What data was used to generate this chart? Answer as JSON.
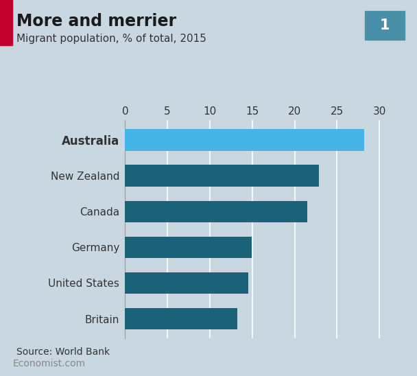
{
  "title": "More and merrier",
  "subtitle": "Migrant population, % of total, 2015",
  "source": "Source: World Bank",
  "footer": "Economist.com",
  "chart_number": "1",
  "categories": [
    "Australia",
    "New Zealand",
    "Canada",
    "Germany",
    "United States",
    "Britain"
  ],
  "values": [
    28.2,
    22.9,
    21.5,
    14.9,
    14.5,
    13.2
  ],
  "bar_colors": [
    "#45B5E8",
    "#1A6278",
    "#1A6278",
    "#1A6278",
    "#1A6278",
    "#1A6278"
  ],
  "background_color": "#C9D8E0",
  "footer_bg_color": "#FFFFFF",
  "grid_color": "#FFFFFF",
  "title_fontsize": 17,
  "subtitle_fontsize": 11,
  "label_fontsize": 11,
  "tick_fontsize": 11,
  "source_fontsize": 10,
  "footer_fontsize": 10,
  "xlim": [
    0,
    31
  ],
  "xticks": [
    0,
    5,
    10,
    15,
    20,
    25,
    30
  ],
  "red_accent_color": "#C0002A",
  "number_box_color": "#4A8FA8",
  "number_box_text_color": "#FFFFFF",
  "bar_height": 0.6
}
